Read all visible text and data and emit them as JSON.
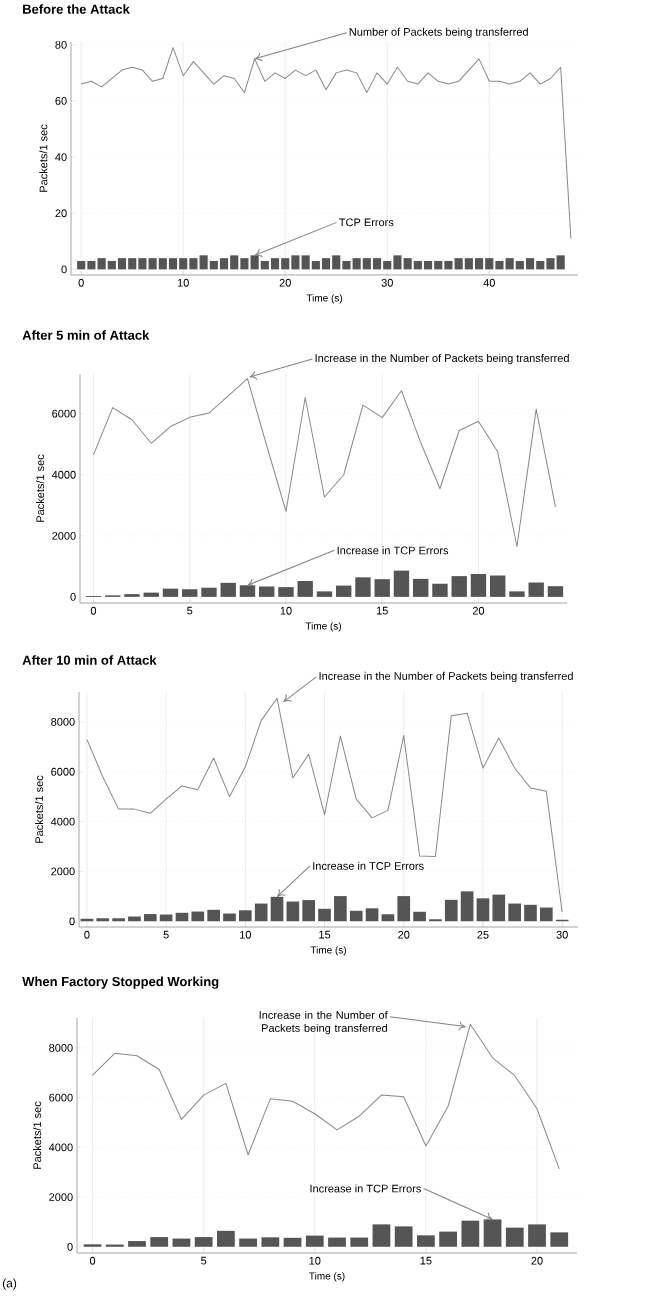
{
  "chart_data": [
    {
      "type": "line",
      "title": "Before the Attack",
      "xlabel": "Time (s)",
      "ylabel": "Packets/1 sec",
      "xlim": [
        -1,
        48.7
      ],
      "ylim": [
        -2,
        81
      ],
      "xticks": [
        0,
        10,
        20,
        30,
        40
      ],
      "yticks": [
        0,
        20,
        40,
        60,
        80
      ],
      "grid": true,
      "series": [
        {
          "type": "bar",
          "color": "#555555",
          "x": [
            0,
            1,
            2,
            3,
            4,
            5,
            6,
            7,
            8,
            9,
            10,
            11,
            12,
            13,
            14,
            15,
            16,
            17,
            18,
            19,
            20,
            21,
            22,
            23,
            24,
            25,
            26,
            27,
            28,
            29,
            30,
            31,
            32,
            33,
            34,
            35,
            36,
            37,
            38,
            39,
            40,
            41,
            42,
            43,
            44,
            45,
            46,
            47
          ],
          "values": [
            3,
            3,
            4,
            3,
            4,
            4,
            4,
            4,
            4,
            4,
            4,
            4,
            5,
            3,
            4,
            5,
            4,
            5,
            3,
            4,
            4,
            5,
            5,
            3,
            4,
            5,
            3,
            4,
            4,
            4,
            3,
            5,
            4,
            3,
            3,
            3,
            3,
            4,
            4,
            4,
            4,
            3,
            4,
            3,
            4,
            3,
            4,
            5
          ]
        },
        {
          "color": "#888888",
          "x": [
            0,
            1,
            2,
            3,
            4,
            5,
            6,
            7,
            8,
            9,
            10,
            11,
            12,
            13,
            14,
            15,
            16,
            17,
            18,
            19,
            20,
            21,
            22,
            23,
            24,
            25,
            26,
            27,
            28,
            29,
            30,
            31,
            32,
            33,
            34,
            35,
            36,
            37,
            38,
            39,
            40,
            41,
            42,
            43,
            44,
            45,
            46,
            47,
            48
          ],
          "values": [
            66,
            67,
            65,
            68,
            71,
            72,
            71,
            67,
            68,
            79,
            69,
            74,
            70,
            66,
            69,
            68,
            63,
            75,
            67,
            70,
            68,
            71,
            69,
            71,
            64,
            70,
            71,
            70,
            63,
            70,
            66,
            72,
            67,
            66,
            70,
            67,
            66,
            67,
            71,
            75,
            67,
            67,
            66,
            67,
            70,
            66,
            68,
            72,
            11
          ]
        }
      ],
      "annotations": [
        {
          "text": "Number of Packets being transferred",
          "x": 17,
          "y": 75
        },
        {
          "text": "TCP Errors",
          "x": 17,
          "y": 5
        }
      ]
    },
    {
      "type": "line",
      "title": "After 5 min of Attack",
      "xlabel": "Time (s)",
      "ylabel": "Packets/1 sec",
      "xlim": [
        -0.7,
        24.6
      ],
      "ylim": [
        -200,
        7300
      ],
      "xticks": [
        0,
        5,
        10,
        15,
        20
      ],
      "yticks": [
        0,
        2000,
        4000,
        6000
      ],
      "grid": true,
      "series": [
        {
          "type": "bar",
          "color": "#555555",
          "x": [
            0,
            1,
            2,
            3,
            4,
            5,
            6,
            7,
            8,
            9,
            10,
            11,
            12,
            13,
            14,
            15,
            16,
            17,
            18,
            19,
            20,
            21,
            22,
            23,
            24
          ],
          "values": [
            30,
            50,
            90,
            140,
            270,
            250,
            300,
            460,
            380,
            340,
            320,
            520,
            180,
            370,
            640,
            580,
            860,
            590,
            430,
            680,
            750,
            700,
            180,
            470,
            350
          ]
        },
        {
          "color": "#888888",
          "x": [
            0,
            1,
            2,
            3,
            4,
            5,
            6,
            7,
            8,
            9,
            10,
            11,
            12,
            13,
            14,
            15,
            16,
            17,
            18,
            19,
            20,
            21,
            22,
            23,
            24
          ],
          "values": [
            4650,
            6200,
            5800,
            5030,
            5580,
            5880,
            6020,
            6580,
            7150,
            4950,
            2800,
            6530,
            3270,
            4000,
            6280,
            5870,
            6750,
            5050,
            3550,
            5450,
            5750,
            4750,
            1650,
            6150,
            2950
          ]
        }
      ],
      "annotations": [
        {
          "text": "Increase in the Number of Packets being transferred",
          "x": 8.1,
          "y": 7200
        },
        {
          "text": "Increase in TCP Errors",
          "x": 8,
          "y": 380
        }
      ]
    },
    {
      "type": "line",
      "title": "After 10 min of Attack",
      "xlabel": "Time (s)",
      "ylabel": "Packets/1 sec",
      "xlim": [
        -0.5,
        31
      ],
      "ylim": [
        -230,
        9200
      ],
      "xticks": [
        0,
        5,
        10,
        15,
        20,
        25,
        30
      ],
      "yticks": [
        0,
        2000,
        4000,
        6000,
        8000
      ],
      "grid": true,
      "series": [
        {
          "type": "bar",
          "color": "#555555",
          "x": [
            0,
            1,
            2,
            3,
            4,
            5,
            6,
            7,
            8,
            9,
            10,
            11,
            12,
            13,
            14,
            15,
            16,
            17,
            18,
            19,
            20,
            21,
            22,
            23,
            24,
            25,
            26,
            27,
            28,
            29,
            30
          ],
          "values": [
            100,
            120,
            120,
            190,
            290,
            270,
            340,
            390,
            460,
            310,
            440,
            710,
            980,
            790,
            850,
            500,
            1010,
            420,
            520,
            280,
            1010,
            380,
            80,
            860,
            1200,
            920,
            1070,
            710,
            660,
            550,
            60
          ]
        },
        {
          "color": "#888888",
          "x": [
            0,
            1,
            2,
            3,
            4,
            5,
            6,
            7,
            8,
            9,
            10,
            11,
            12,
            13,
            14,
            15,
            16,
            17,
            18,
            19,
            20,
            21,
            22,
            23,
            24,
            25,
            26,
            27,
            28,
            29,
            30
          ],
          "values": [
            7300,
            5800,
            4500,
            4500,
            4330,
            4900,
            5430,
            5280,
            6550,
            5000,
            6200,
            8050,
            8950,
            5750,
            6700,
            4280,
            7430,
            4900,
            4150,
            4450,
            7450,
            2620,
            2600,
            8250,
            8350,
            6150,
            7350,
            6150,
            5350,
            5220,
            370
          ]
        }
      ],
      "annotations": [
        {
          "text": "Increase in the Number of Packets being transferred",
          "x": 12.4,
          "y": 8800
        },
        {
          "text": "Increase in TCP Errors",
          "x": 12,
          "y": 980
        }
      ]
    },
    {
      "type": "line",
      "title": "When Factory Stopped Working",
      "xlabel": "Time (s)",
      "ylabel": "Packets/1 sec",
      "xlim": [
        -0.7,
        21.8
      ],
      "ylim": [
        -250,
        9200
      ],
      "xticks": [
        0,
        5,
        10,
        15,
        20
      ],
      "yticks": [
        0,
        2000,
        4000,
        6000,
        8000
      ],
      "grid": true,
      "series": [
        {
          "type": "bar",
          "color": "#555555",
          "x": [
            0,
            1,
            2,
            3,
            4,
            5,
            6,
            7,
            8,
            9,
            10,
            11,
            12,
            13,
            14,
            15,
            16,
            17,
            18,
            19,
            20,
            21
          ],
          "values": [
            100,
            90,
            230,
            390,
            330,
            390,
            640,
            330,
            380,
            360,
            450,
            370,
            370,
            900,
            820,
            460,
            610,
            1050,
            1100,
            770,
            900,
            580
          ]
        },
        {
          "color": "#888888",
          "x": [
            0,
            1,
            2,
            3,
            4,
            5,
            6,
            7,
            8,
            9,
            10,
            11,
            12,
            13,
            14,
            15,
            16,
            17,
            18,
            19,
            20,
            21
          ],
          "values": [
            6900,
            7780,
            7680,
            7130,
            5120,
            6100,
            6570,
            3700,
            5950,
            5850,
            5350,
            4700,
            5250,
            6100,
            6030,
            4050,
            5650,
            8950,
            7600,
            6880,
            5550,
            3130
          ]
        }
      ],
      "annotations": [
        {
          "text": "Increase in the Number of Packets being transferred",
          "x": 16.8,
          "y": 8850
        },
        {
          "text": "Increase in TCP Errors",
          "x": 18,
          "y": 1100
        },
        "(a)"
      ]
    }
  ]
}
